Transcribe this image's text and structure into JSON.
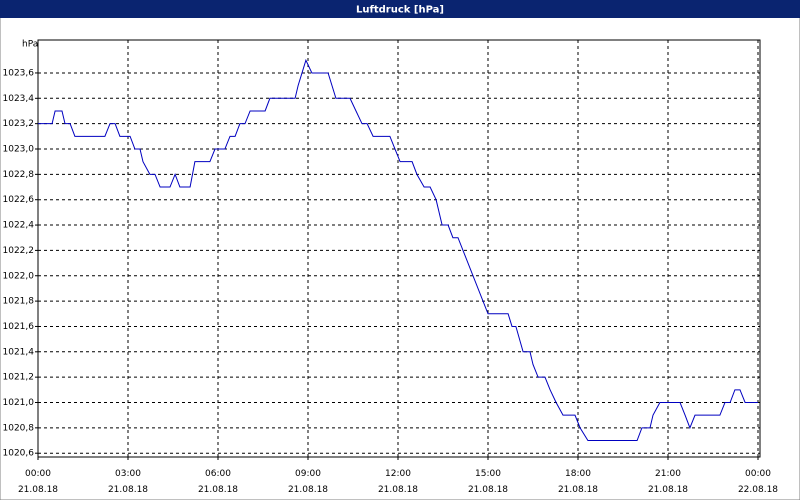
{
  "chart_data": {
    "type": "line",
    "title": "Luftdruck [hPa]",
    "y_label": "hPa",
    "color": "#0000c0",
    "grid": true,
    "xlim": [
      0,
      24
    ],
    "ylim": [
      1020.57,
      1023.86
    ],
    "xticks": [
      {
        "value": 0,
        "label": "00:00 21.08.18"
      },
      {
        "value": 3,
        "label": "03:00 21.08.18"
      },
      {
        "value": 6,
        "label": "06:00 21.08.18"
      },
      {
        "value": 9,
        "label": "09:00 21.08.18"
      },
      {
        "value": 12,
        "label": "12:00 21.08.18"
      },
      {
        "value": 15,
        "label": "15:00 21.08.18"
      },
      {
        "value": 18,
        "label": "18:00 21.08.18"
      },
      {
        "value": 21,
        "label": "21:00 21.08.18"
      },
      {
        "value": 24,
        "label": "00:00 22.08.18"
      }
    ],
    "yticks": [
      {
        "value": 1020.6,
        "label": "1020,6"
      },
      {
        "value": 1020.8,
        "label": "1020,8"
      },
      {
        "value": 1021.0,
        "label": "1021,0"
      },
      {
        "value": 1021.2,
        "label": "1021,2"
      },
      {
        "value": 1021.4,
        "label": "1021,4"
      },
      {
        "value": 1021.6,
        "label": "1021,6"
      },
      {
        "value": 1021.8,
        "label": "1021,8"
      },
      {
        "value": 1022.0,
        "label": "1022,0"
      },
      {
        "value": 1022.2,
        "label": "1022,2"
      },
      {
        "value": 1022.4,
        "label": "1022,4"
      },
      {
        "value": 1022.6,
        "label": "1022,6"
      },
      {
        "value": 1022.8,
        "label": "1022,8"
      },
      {
        "value": 1023.0,
        "label": "1023,0"
      },
      {
        "value": 1023.2,
        "label": "1023,2"
      },
      {
        "value": 1023.4,
        "label": "1023,4"
      },
      {
        "value": 1023.6,
        "label": "1023,6"
      }
    ],
    "x": [
      0,
      0.47,
      0.57,
      0.8,
      0.9,
      1.07,
      1.23,
      2.23,
      2.4,
      2.57,
      2.73,
      3.07,
      3.23,
      3.4,
      3.5,
      3.73,
      3.9,
      4.07,
      4.4,
      4.57,
      4.73,
      5.07,
      5.23,
      5.73,
      5.9,
      6.23,
      6.4,
      6.57,
      6.73,
      6.9,
      7.07,
      7.57,
      7.73,
      8.57,
      8.67,
      8.8,
      8.93,
      9.13,
      9.67,
      9.8,
      9.93,
      10.4,
      10.6,
      10.8,
      10.97,
      11.17,
      11.73,
      11.9,
      12.07,
      12.47,
      12.63,
      12.87,
      13.07,
      13.27,
      13.47,
      13.67,
      13.83,
      14,
      15,
      15.07,
      15.67,
      15.8,
      15.93,
      16.17,
      16.4,
      16.5,
      16.67,
      16.9,
      17.07,
      17.27,
      17.5,
      17.9,
      18.07,
      18.33,
      19.97,
      20.13,
      20.4,
      20.5,
      20.73,
      21.4,
      21.57,
      21.73,
      21.9,
      22.73,
      22.9,
      23.07,
      23.23,
      23.4,
      23.57,
      24
    ],
    "values": [
      1023.2,
      1023.2,
      1023.3,
      1023.3,
      1023.2,
      1023.2,
      1023.1,
      1023.1,
      1023.2,
      1023.2,
      1023.1,
      1023.1,
      1023.0,
      1023.0,
      1022.9,
      1022.8,
      1022.8,
      1022.7,
      1022.7,
      1022.8,
      1022.7,
      1022.7,
      1022.9,
      1022.9,
      1023.0,
      1023.0,
      1023.1,
      1023.1,
      1023.2,
      1023.2,
      1023.3,
      1023.3,
      1023.4,
      1023.4,
      1023.5,
      1023.6,
      1023.7,
      1023.6,
      1023.6,
      1023.5,
      1023.4,
      1023.4,
      1023.3,
      1023.2,
      1023.2,
      1023.1,
      1023.1,
      1023.0,
      1022.9,
      1022.9,
      1022.8,
      1022.7,
      1022.7,
      1022.6,
      1022.4,
      1022.4,
      1022.3,
      1022.3,
      1021.7,
      1021.7,
      1021.7,
      1021.6,
      1021.6,
      1021.4,
      1021.4,
      1021.3,
      1021.2,
      1021.2,
      1021.1,
      1021.0,
      1020.9,
      1020.9,
      1020.8,
      1020.7,
      1020.7,
      1020.8,
      1020.8,
      1020.9,
      1021.0,
      1021.0,
      1020.9,
      1020.8,
      1020.9,
      1020.9,
      1021.0,
      1021.0,
      1021.1,
      1021.1,
      1021.0,
      1021.0
    ]
  }
}
